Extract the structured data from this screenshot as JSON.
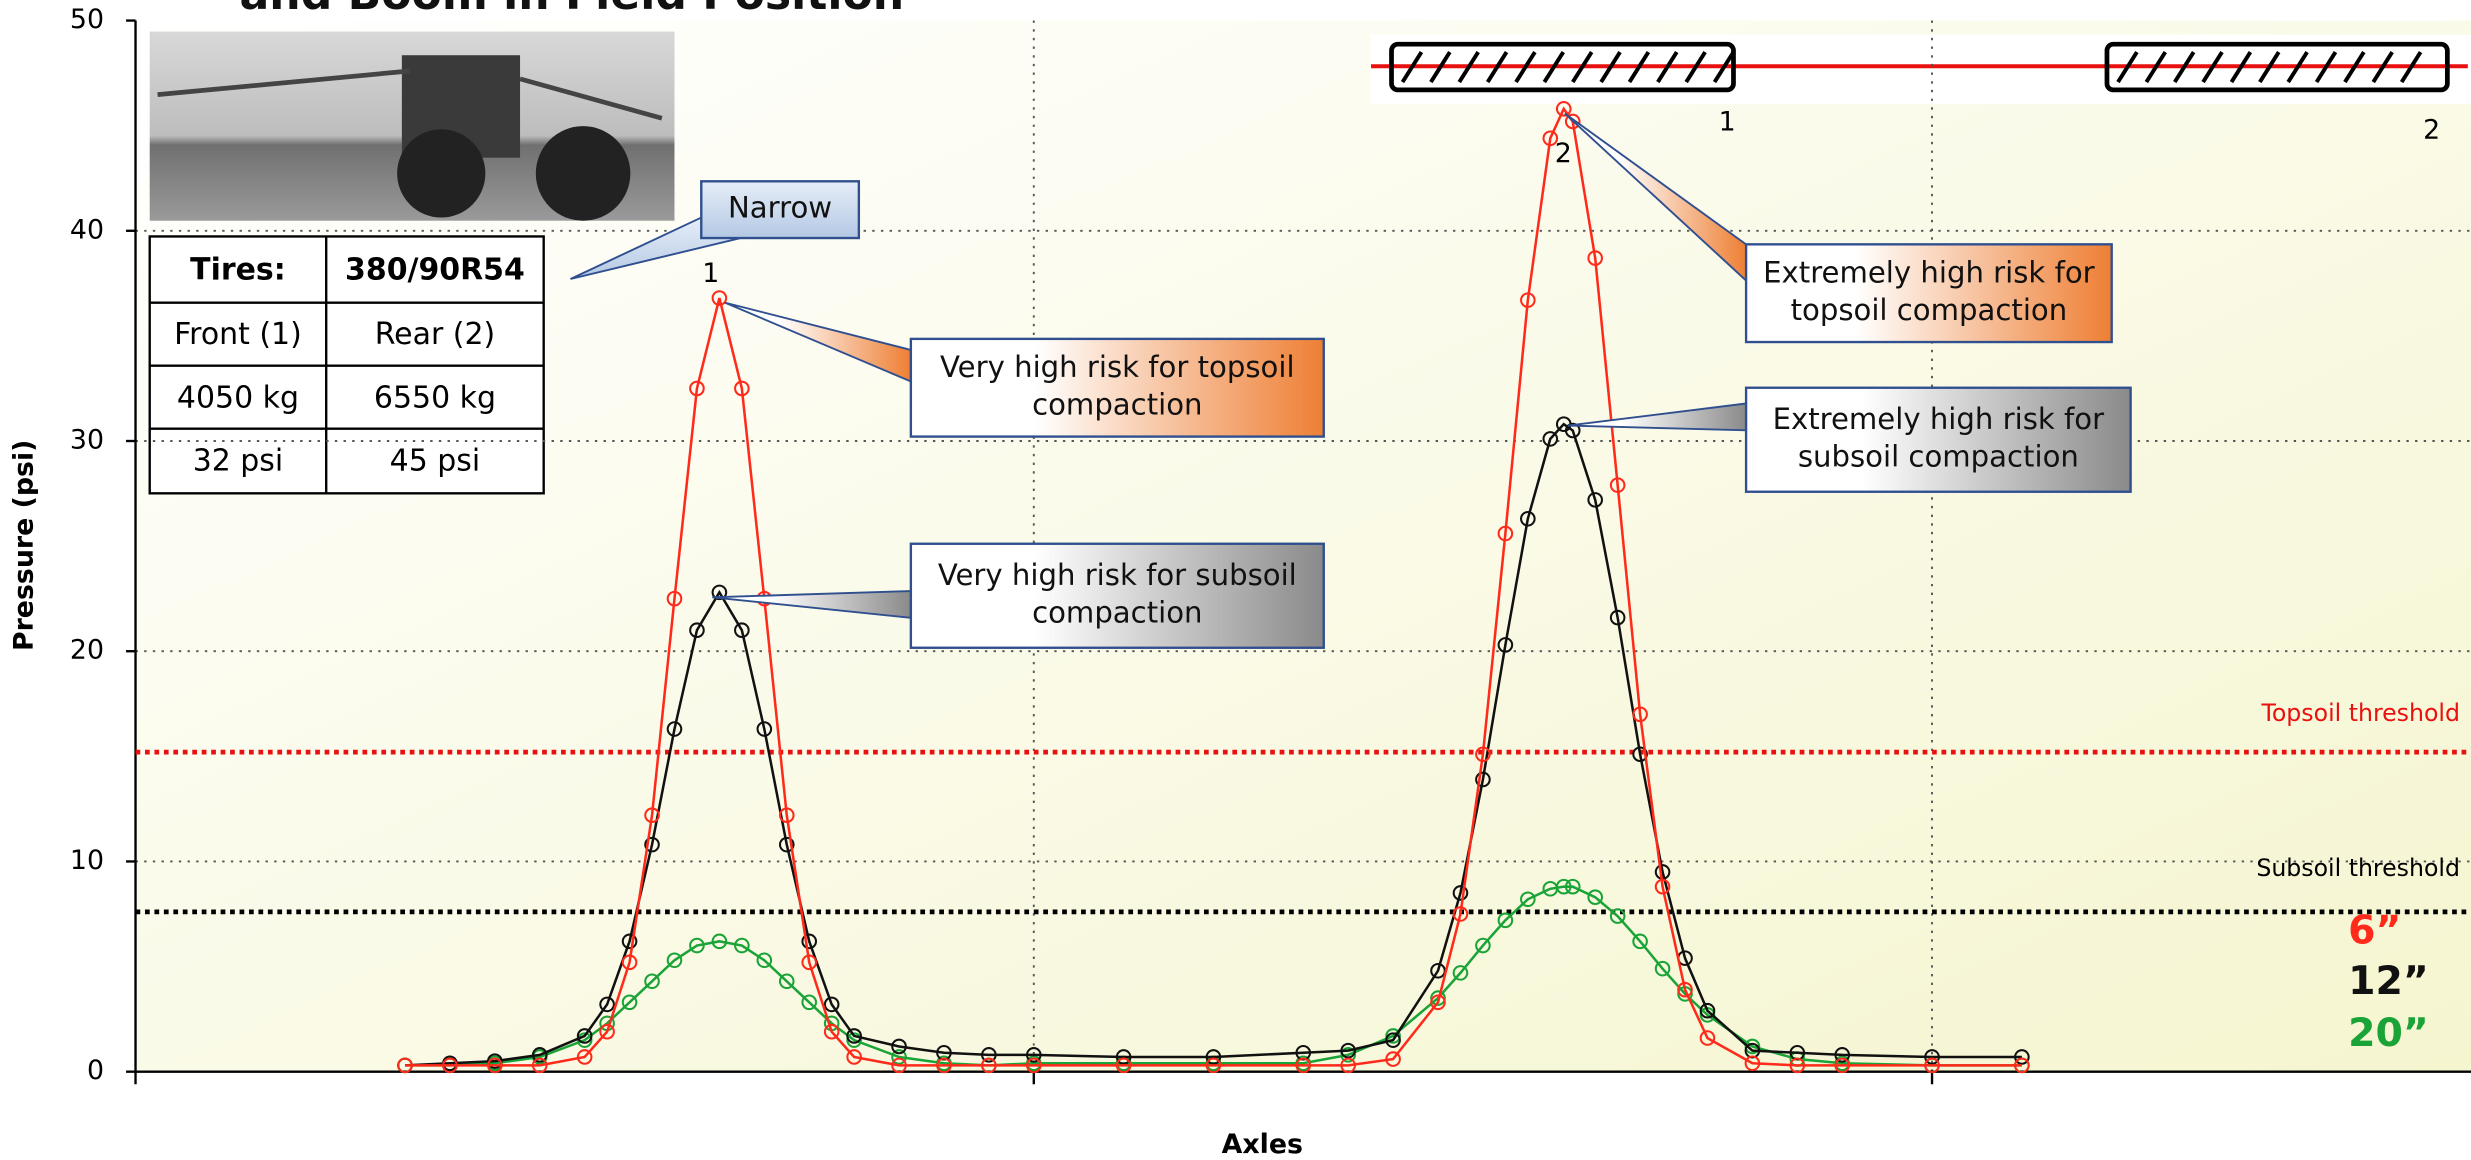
{
  "chart_data": {
    "type": "line",
    "title": "and Boom in Field Position",
    "xlabel": "Axles",
    "ylabel": "Pressure (psi)",
    "xlim": [
      0,
      26
    ],
    "xticks": [
      10,
      20
    ],
    "ylim": [
      0,
      50
    ],
    "yticks": [
      0,
      10,
      20,
      30,
      40,
      50
    ],
    "grid": true,
    "x": [
      3,
      3.5,
      4,
      4.5,
      5,
      5.25,
      5.5,
      5.75,
      6,
      6.25,
      6.5,
      6.75,
      7,
      7.25,
      7.5,
      7.75,
      8,
      8.5,
      9,
      9.5,
      10,
      11,
      12,
      13,
      13.5,
      14,
      14.5,
      14.75,
      15,
      15.25,
      15.5,
      15.75,
      15.9,
      16,
      16.25,
      16.5,
      16.75,
      17,
      17.25,
      17.5,
      18,
      18.5,
      19,
      20,
      21
    ],
    "series": [
      {
        "name": "6”",
        "color": "#ff2a1a",
        "values": [
          0.3,
          0.3,
          0.3,
          0.3,
          0.7,
          1.9,
          5.2,
          12.2,
          22.5,
          32.5,
          36.8,
          32.5,
          22.5,
          12.2,
          5.2,
          1.9,
          0.7,
          0.3,
          0.3,
          0.3,
          0.3,
          0.3,
          0.3,
          0.3,
          0.3,
          0.6,
          3.3,
          7.5,
          15.1,
          25.6,
          36.7,
          44.4,
          45.8,
          45.2,
          38.7,
          27.9,
          17.0,
          8.8,
          3.9,
          1.6,
          0.4,
          0.3,
          0.3,
          0.3,
          0.3
        ]
      },
      {
        "name": "12”",
        "color": "#111111",
        "values": [
          0.3,
          0.4,
          0.5,
          0.8,
          1.7,
          3.2,
          6.2,
          10.8,
          16.3,
          21.0,
          22.8,
          21.0,
          16.3,
          10.8,
          6.2,
          3.2,
          1.7,
          1.2,
          0.9,
          0.8,
          0.8,
          0.7,
          0.7,
          0.9,
          1.0,
          1.5,
          4.8,
          8.5,
          13.9,
          20.3,
          26.3,
          30.1,
          30.8,
          30.5,
          27.2,
          21.6,
          15.1,
          9.5,
          5.4,
          2.9,
          1.0,
          0.9,
          0.8,
          0.7,
          0.7
        ]
      },
      {
        "name": "20”",
        "color": "#1aa337",
        "values": [
          0.3,
          0.3,
          0.4,
          0.7,
          1.5,
          2.3,
          3.3,
          4.3,
          5.3,
          6.0,
          6.2,
          6.0,
          5.3,
          4.3,
          3.3,
          2.3,
          1.5,
          0.7,
          0.4,
          0.3,
          0.4,
          0.4,
          0.4,
          0.4,
          0.8,
          1.7,
          3.5,
          4.7,
          6.0,
          7.2,
          8.2,
          8.7,
          8.8,
          8.8,
          8.3,
          7.4,
          6.2,
          4.9,
          3.7,
          2.7,
          1.2,
          0.6,
          0.4,
          0.3,
          0.3
        ]
      }
    ],
    "thresholds": [
      {
        "label": "Topsoil threshold",
        "value": 15.2,
        "color": "#e8110f"
      },
      {
        "label": "Subsoil threshold",
        "value": 7.6,
        "color": "#000000"
      }
    ],
    "peak_labels": [
      "1",
      "2"
    ],
    "tire_labels": [
      "1",
      "2"
    ],
    "callouts": [
      {
        "lines": [
          "Narrow"
        ]
      },
      {
        "lines": [
          "Very high risk for topsoil",
          "compaction"
        ]
      },
      {
        "lines": [
          "Very high risk for subsoil",
          "compaction"
        ]
      },
      {
        "lines": [
          "Extremely high risk for",
          "topsoil compaction"
        ]
      },
      {
        "lines": [
          "Extremely high risk for",
          "subsoil compaction"
        ]
      }
    ],
    "table": {
      "header": [
        "Tires:",
        "380/90R54"
      ],
      "rows": [
        [
          "Front (1)",
          "Rear (2)"
        ],
        [
          "4050 kg",
          "6550 kg"
        ],
        [
          "32 psi",
          "45 psi"
        ]
      ]
    }
  }
}
